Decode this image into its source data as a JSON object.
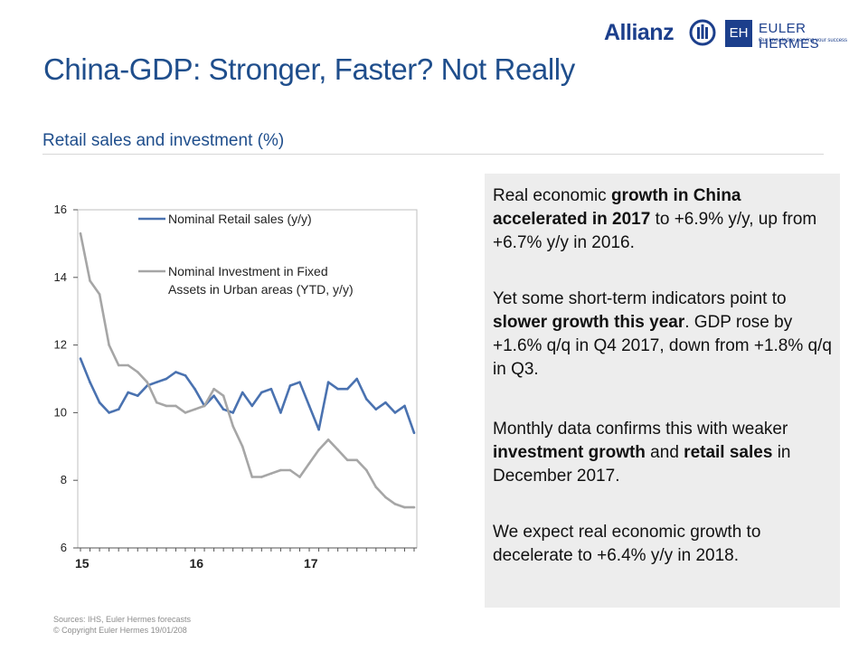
{
  "header": {
    "brand": "Allianz",
    "partner_mark": "EH",
    "partner_name": "EULER HERMES",
    "partner_tagline": "Our knowledge serving your success"
  },
  "page": {
    "title": "China-GDP: Stronger, Faster? Not Really",
    "subtitle": "Retail sales and investment (%)"
  },
  "chart_data": {
    "type": "line",
    "title": "",
    "xlabel": "",
    "ylabel": "",
    "x_tick_labels": [
      "15",
      "16",
      "17"
    ],
    "y_ticks": [
      6,
      8,
      10,
      12,
      14,
      16
    ],
    "ylim": [
      6,
      16
    ],
    "months": [
      "2015-01",
      "2015-02",
      "2015-03",
      "2015-04",
      "2015-05",
      "2015-06",
      "2015-07",
      "2015-08",
      "2015-09",
      "2015-10",
      "2015-11",
      "2015-12",
      "2016-01",
      "2016-02",
      "2016-03",
      "2016-04",
      "2016-05",
      "2016-06",
      "2016-07",
      "2016-08",
      "2016-09",
      "2016-10",
      "2016-11",
      "2016-12",
      "2017-01",
      "2017-02",
      "2017-03",
      "2017-04",
      "2017-05",
      "2017-06",
      "2017-07",
      "2017-08",
      "2017-09",
      "2017-10",
      "2017-11",
      "2017-12"
    ],
    "legend_position": "top",
    "grid": false,
    "series": [
      {
        "name": "Nominal Retail sales (y/y)",
        "color": "#4a72b0",
        "values": [
          11.6,
          10.9,
          10.3,
          10.0,
          10.1,
          10.6,
          10.5,
          10.8,
          10.9,
          11.0,
          11.2,
          11.1,
          10.7,
          10.2,
          10.5,
          10.1,
          10.0,
          10.6,
          10.2,
          10.6,
          10.7,
          10.0,
          10.8,
          10.9,
          10.2,
          9.5,
          10.9,
          10.7,
          10.7,
          11.0,
          10.4,
          10.1,
          10.3,
          10.0,
          10.2,
          9.4
        ]
      },
      {
        "name": "Nominal Investment in Fixed Assets in Urban areas (YTD, y/y)",
        "legend_lines": [
          "Nominal Investment in Fixed",
          "Assets in Urban areas (YTD, y/y)"
        ],
        "color": "#a6a6a6",
        "values": [
          15.3,
          13.9,
          13.5,
          12.0,
          11.4,
          11.4,
          11.2,
          10.9,
          10.3,
          10.2,
          10.2,
          10.0,
          10.1,
          10.2,
          10.7,
          10.5,
          9.6,
          9.0,
          8.1,
          8.1,
          8.2,
          8.3,
          8.3,
          8.1,
          8.5,
          8.9,
          9.2,
          8.9,
          8.6,
          8.6,
          8.3,
          7.8,
          7.5,
          7.3,
          7.2,
          7.2
        ]
      }
    ]
  },
  "commentary": {
    "p1": [
      "Real economic ",
      "growth in China accelerated in 2017",
      " to +6.9% y/y, up from +6.7% y/y in 2016."
    ],
    "p2": [
      "Yet some short-term indicators point to ",
      "slower growth this year",
      ". GDP rose by +1.6% q/q in Q4 2017, down from +1.8% q/q in Q3."
    ],
    "p3": [
      "Monthly data confirms this with weaker ",
      "investment growth",
      " and ",
      "retail sales",
      " in December 2017."
    ],
    "p4": "We expect real economic growth to decelerate to +6.4% y/y in 2018."
  },
  "footer": {
    "sources": "Sources: IHS, Euler Hermes forecasts",
    "copyright": "© Copyright Euler Hermes 19/01/208"
  }
}
